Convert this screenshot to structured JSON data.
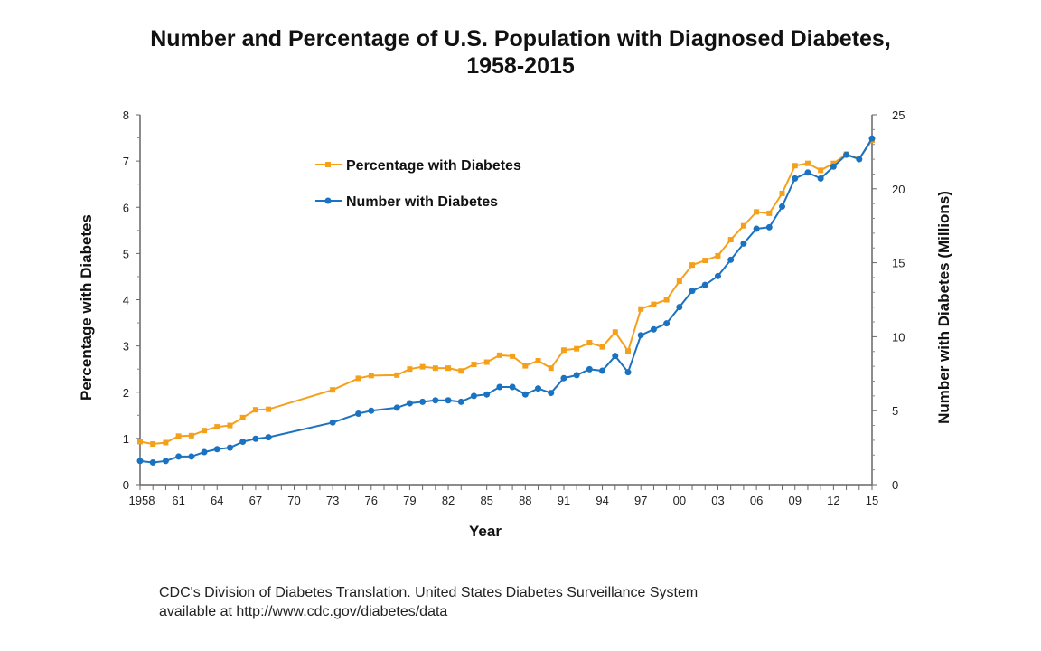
{
  "chart_data": {
    "type": "line",
    "title_line1": "Number and Percentage of U.S. Population with Diagnosed Diabetes,",
    "title_line2": "1958-2015",
    "xlabel": "Year",
    "ylabel_left": "Percentage with Diabetes",
    "ylabel_right": "Number with Diabetes (Millions)",
    "xlim": [
      1958,
      2015
    ],
    "ylim_left": [
      0,
      8
    ],
    "ylim_right": [
      0,
      25
    ],
    "yticks_left": [
      "0",
      "1",
      "2",
      "3",
      "4",
      "5",
      "6",
      "7",
      "8"
    ],
    "yticks_right": [
      "0",
      "5",
      "10",
      "15",
      "20",
      "25"
    ],
    "xtick_labels": [
      "1958",
      "61",
      "64",
      "67",
      "70",
      "73",
      "76",
      "79",
      "82",
      "85",
      "88",
      "91",
      "94",
      "97",
      "00",
      "03",
      "06",
      "09",
      "12",
      "15"
    ],
    "legend_position": "top-left-inside",
    "x": [
      1958,
      1959,
      1960,
      1961,
      1962,
      1963,
      1964,
      1965,
      1966,
      1967,
      1968,
      1973,
      1975,
      1976,
      1978,
      1979,
      1980,
      1981,
      1982,
      1983,
      1984,
      1985,
      1986,
      1987,
      1988,
      1989,
      1990,
      1991,
      1992,
      1993,
      1994,
      1995,
      1996,
      1997,
      1998,
      1999,
      2000,
      2001,
      2002,
      2003,
      2004,
      2005,
      2006,
      2007,
      2008,
      2009,
      2010,
      2011,
      2012,
      2013,
      2014,
      2015
    ],
    "series": [
      {
        "name": "Percentage with Diabetes",
        "axis": "left",
        "color": "#f5a01a",
        "values": [
          0.93,
          0.88,
          0.91,
          1.05,
          1.06,
          1.17,
          1.25,
          1.28,
          1.45,
          1.62,
          1.63,
          2.05,
          2.3,
          2.36,
          2.37,
          2.5,
          2.55,
          2.52,
          2.52,
          2.46,
          2.6,
          2.65,
          2.8,
          2.78,
          2.57,
          2.68,
          2.52,
          2.91,
          2.94,
          3.07,
          2.98,
          3.3,
          2.89,
          3.8,
          3.9,
          4.0,
          4.4,
          4.75,
          4.85,
          4.95,
          5.3,
          5.6,
          5.9,
          5.87,
          6.3,
          6.9,
          6.95,
          6.8,
          6.95,
          7.15,
          7.05,
          7.45
        ]
      },
      {
        "name": "Number with Diabetes",
        "axis": "right",
        "color": "#1a72c0",
        "values": [
          1.6,
          1.5,
          1.6,
          1.9,
          1.9,
          2.2,
          2.4,
          2.5,
          2.9,
          3.1,
          3.2,
          4.2,
          4.8,
          5.0,
          5.2,
          5.5,
          5.6,
          5.7,
          5.7,
          5.6,
          6.0,
          6.1,
          6.6,
          6.6,
          6.1,
          6.5,
          6.2,
          7.2,
          7.4,
          7.8,
          7.7,
          8.7,
          7.6,
          10.1,
          10.5,
          10.9,
          12.0,
          13.1,
          13.5,
          14.1,
          15.2,
          16.3,
          17.3,
          17.4,
          18.8,
          20.7,
          21.1,
          20.7,
          21.5,
          22.3,
          22.0,
          23.4
        ]
      }
    ]
  },
  "source": {
    "line1": "CDC's Division of Diabetes Translation. United States Diabetes Surveillance System",
    "line2": "available at http://www.cdc.gov/diabetes/data"
  }
}
